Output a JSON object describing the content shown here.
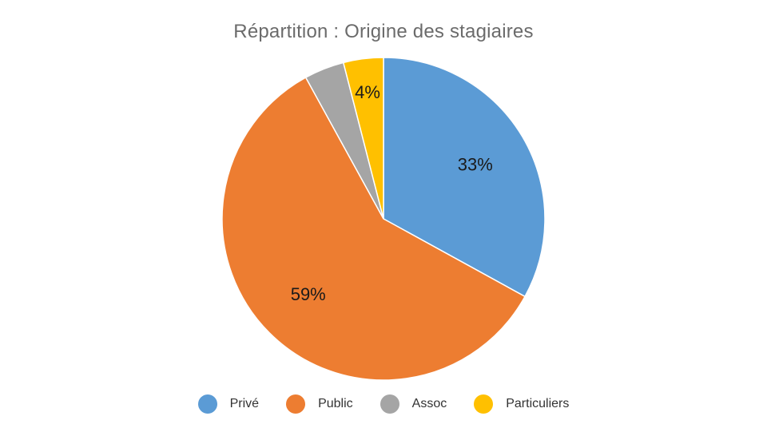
{
  "chart_data": {
    "type": "pie",
    "title": "Répartition : Origine des stagiaires",
    "categories": [
      "Privé",
      "Public",
      "Assoc",
      "Particuliers"
    ],
    "values": [
      33,
      59,
      4,
      4
    ],
    "data_labels": [
      "33%",
      "59%",
      "",
      "4%"
    ],
    "colors": [
      "#5B9BD5",
      "#ED7D31",
      "#A5A5A5",
      "#FFC000"
    ],
    "legend_position": "bottom"
  }
}
